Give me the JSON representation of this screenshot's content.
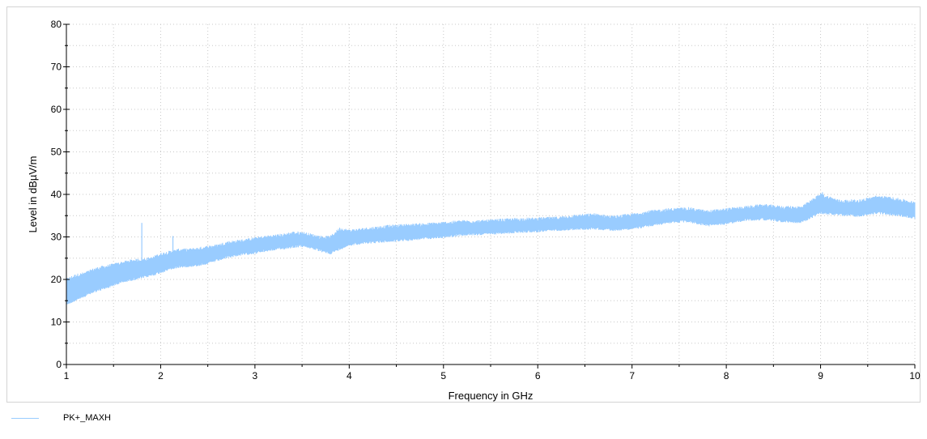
{
  "chart_data": {
    "type": "line",
    "title": "",
    "xlabel": "Frequency in GHz",
    "ylabel": "Level in dBµV/m",
    "xlim": [
      1,
      10
    ],
    "ylim": [
      0,
      80
    ],
    "x_ticks": [
      "1",
      "2",
      "3",
      "4",
      "5",
      "6",
      "7",
      "8",
      "9",
      "10"
    ],
    "y_ticks": [
      "0",
      "10",
      "20",
      "30",
      "40",
      "50",
      "60",
      "70",
      "80"
    ],
    "grid": true,
    "legend_position": "bottom-left",
    "series": [
      {
        "name": "PK+_MAXH",
        "color": "#99ccff",
        "envelope_x": [
          1.0,
          1.1,
          1.2,
          1.3,
          1.4,
          1.5,
          1.6,
          1.7,
          1.8,
          1.9,
          2.0,
          2.1,
          2.2,
          2.3,
          2.4,
          2.5,
          2.6,
          2.7,
          2.8,
          2.9,
          3.0,
          3.1,
          3.2,
          3.3,
          3.4,
          3.5,
          3.6,
          3.7,
          3.8,
          3.9,
          4.0,
          4.2,
          4.4,
          4.6,
          4.8,
          5.0,
          5.2,
          5.4,
          5.6,
          5.8,
          6.0,
          6.2,
          6.4,
          6.6,
          6.8,
          7.0,
          7.2,
          7.4,
          7.6,
          7.8,
          8.0,
          8.2,
          8.4,
          8.6,
          8.8,
          9.0,
          9.2,
          9.4,
          9.6,
          9.8,
          10.0
        ],
        "envelope_low": [
          14.5,
          15.5,
          16.5,
          17.5,
          18.2,
          19.0,
          19.8,
          20.3,
          20.8,
          21.3,
          22.0,
          22.8,
          23.3,
          23.5,
          23.7,
          24.2,
          24.8,
          25.5,
          26.0,
          26.3,
          26.6,
          27.0,
          27.4,
          27.6,
          28.0,
          28.2,
          27.8,
          27.0,
          26.5,
          27.5,
          28.5,
          29.0,
          29.3,
          29.6,
          30.0,
          30.3,
          30.8,
          31.0,
          31.2,
          31.5,
          31.7,
          32.0,
          32.2,
          32.3,
          32.0,
          32.3,
          33.0,
          33.8,
          34.0,
          33.0,
          33.5,
          34.3,
          34.5,
          34.0,
          33.8,
          36.0,
          35.5,
          35.3,
          36.0,
          35.5,
          34.8
        ],
        "envelope_high": [
          19.5,
          20.5,
          21.0,
          22.0,
          22.5,
          23.0,
          23.5,
          24.0,
          24.2,
          24.5,
          25.5,
          26.0,
          26.5,
          26.5,
          26.8,
          27.2,
          27.5,
          28.2,
          28.5,
          28.8,
          29.2,
          29.5,
          29.8,
          30.0,
          30.5,
          30.5,
          30.0,
          29.5,
          29.5,
          31.5,
          31.0,
          31.5,
          32.0,
          32.3,
          32.5,
          32.8,
          33.2,
          33.2,
          33.5,
          33.7,
          33.8,
          34.0,
          34.5,
          34.8,
          34.2,
          34.8,
          35.5,
          36.0,
          36.2,
          35.5,
          36.0,
          36.5,
          37.0,
          36.5,
          36.5,
          39.5,
          38.0,
          38.0,
          39.0,
          38.5,
          37.5
        ],
        "spikes": [
          {
            "x": 1.8,
            "y": 33.3
          },
          {
            "x": 2.13,
            "y": 30.2
          },
          {
            "x": 2.22,
            "y": 27.0
          },
          {
            "x": 9.02,
            "y": 40.5
          }
        ]
      }
    ]
  }
}
